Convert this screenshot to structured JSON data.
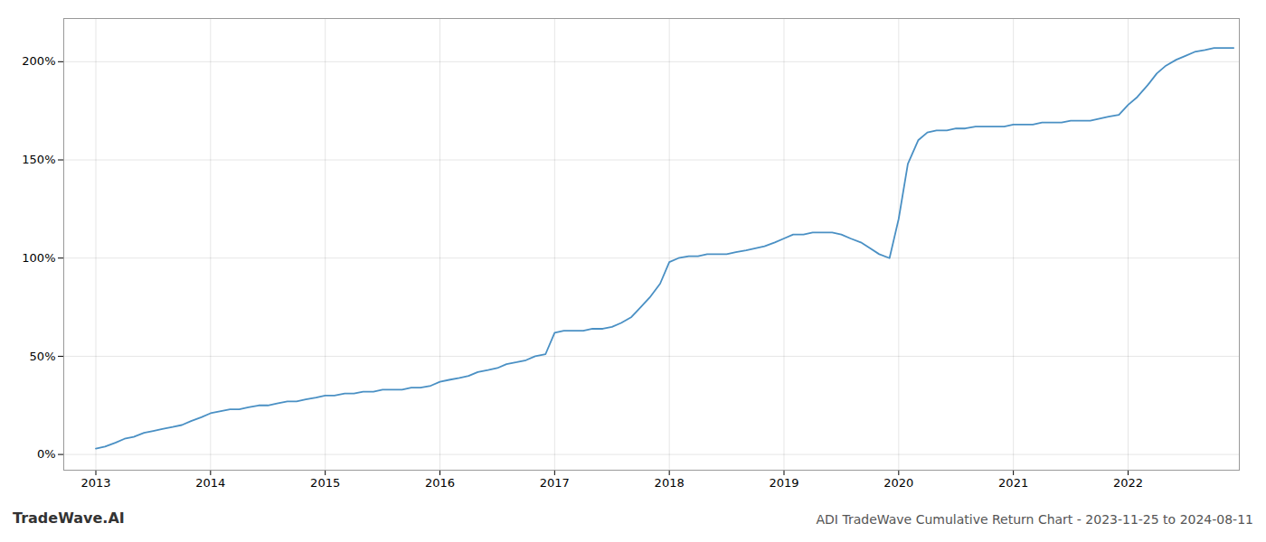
{
  "chart_data": {
    "type": "line",
    "title": "ADI TradeWave Cumulative Return Chart - 2023-11-25 to 2024-08-11",
    "annotations": [
      "TradeWave.AI"
    ],
    "x": [
      2013.0,
      2013.08,
      2013.17,
      2013.25,
      2013.33,
      2013.42,
      2013.5,
      2013.58,
      2013.67,
      2013.75,
      2013.83,
      2013.92,
      2014.0,
      2014.08,
      2014.17,
      2014.25,
      2014.33,
      2014.42,
      2014.5,
      2014.58,
      2014.67,
      2014.75,
      2014.83,
      2014.92,
      2015.0,
      2015.08,
      2015.17,
      2015.25,
      2015.33,
      2015.42,
      2015.5,
      2015.58,
      2015.67,
      2015.75,
      2015.83,
      2015.92,
      2016.0,
      2016.08,
      2016.17,
      2016.25,
      2016.33,
      2016.42,
      2016.5,
      2016.58,
      2016.67,
      2016.75,
      2016.83,
      2016.92,
      2017.0,
      2017.08,
      2017.17,
      2017.25,
      2017.33,
      2017.42,
      2017.5,
      2017.58,
      2017.67,
      2017.75,
      2017.83,
      2017.92,
      2018.0,
      2018.08,
      2018.17,
      2018.25,
      2018.33,
      2018.42,
      2018.5,
      2018.58,
      2018.67,
      2018.75,
      2018.83,
      2018.92,
      2019.0,
      2019.08,
      2019.17,
      2019.25,
      2019.33,
      2019.42,
      2019.5,
      2019.58,
      2019.67,
      2019.75,
      2019.83,
      2019.92,
      2020.0,
      2020.08,
      2020.17,
      2020.25,
      2020.33,
      2020.42,
      2020.5,
      2020.58,
      2020.67,
      2020.75,
      2020.83,
      2020.92,
      2021.0,
      2021.08,
      2021.17,
      2021.25,
      2021.33,
      2021.42,
      2021.5,
      2021.58,
      2021.67,
      2021.75,
      2021.83,
      2021.92,
      2022.0,
      2022.08,
      2022.17,
      2022.25,
      2022.33,
      2022.42,
      2022.5,
      2022.58,
      2022.67,
      2022.75,
      2022.83,
      2022.92
    ],
    "values": [
      3,
      4,
      6,
      8,
      9,
      11,
      12,
      13,
      14,
      15,
      17,
      19,
      21,
      22,
      23,
      23,
      24,
      25,
      25,
      26,
      27,
      27,
      28,
      29,
      30,
      30,
      31,
      31,
      32,
      32,
      33,
      33,
      33,
      34,
      34,
      35,
      37,
      38,
      39,
      40,
      42,
      43,
      44,
      46,
      47,
      48,
      50,
      51,
      62,
      63,
      63,
      63,
      64,
      64,
      65,
      67,
      70,
      75,
      80,
      87,
      98,
      100,
      101,
      101,
      102,
      102,
      102,
      103,
      104,
      105,
      106,
      108,
      110,
      112,
      112,
      113,
      113,
      113,
      112,
      110,
      108,
      105,
      102,
      100,
      120,
      148,
      160,
      164,
      165,
      165,
      166,
      166,
      167,
      167,
      167,
      167,
      168,
      168,
      168,
      169,
      169,
      169,
      170,
      170,
      170,
      171,
      172,
      173,
      178,
      182,
      188,
      194,
      198,
      201,
      203,
      205,
      206,
      207,
      207,
      207
    ],
    "color": "#4a90c4",
    "xlim": [
      2012.72,
      2022.97
    ],
    "xticks": [
      2013,
      2014,
      2015,
      2016,
      2017,
      2018,
      2019,
      2020,
      2021,
      2022
    ],
    "ylim": [
      -8,
      222
    ],
    "yticks": [
      {
        "value": 0,
        "label": "0%"
      },
      {
        "value": 50,
        "label": "50%"
      },
      {
        "value": 100,
        "label": "100%"
      },
      {
        "value": 150,
        "label": "150%"
      },
      {
        "value": 200,
        "label": "200%"
      }
    ],
    "grid": true
  }
}
